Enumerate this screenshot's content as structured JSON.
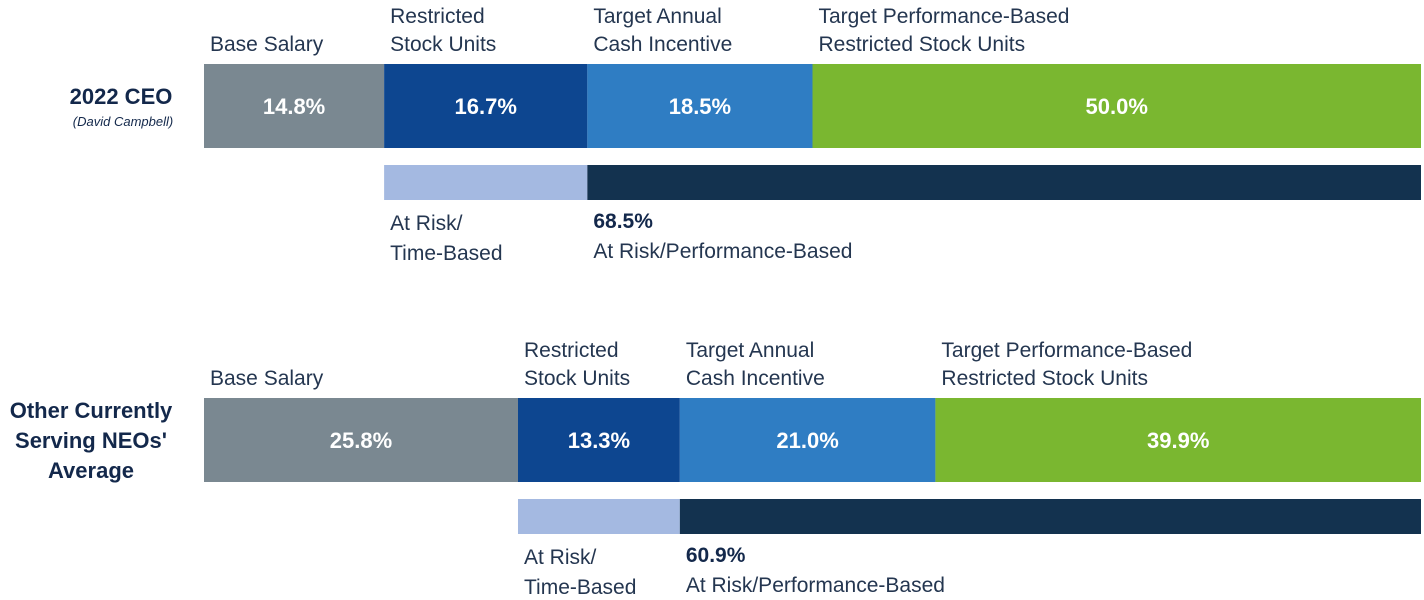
{
  "chart_data": [
    {
      "type": "bar",
      "orientation": "horizontal-stacked",
      "title": "2022 CEO",
      "subtitle": "(David Campbell)",
      "categories": [
        "Base Salary",
        "Restricted Stock Units",
        "Target Annual Cash Incentive",
        "Target Performance-Based Restricted Stock Units"
      ],
      "category_label_lines": [
        [
          "Base Salary"
        ],
        [
          "Restricted",
          "Stock Units"
        ],
        [
          "Target Annual",
          "Cash Incentive"
        ],
        [
          "Target Performance-Based",
          "Restricted Stock Units"
        ]
      ],
      "values": [
        14.8,
        16.7,
        18.5,
        50.0
      ],
      "value_labels": [
        "14.8%",
        "16.7%",
        "18.5%",
        "50.0%"
      ],
      "colors": [
        "#7a8891",
        "#0d4690",
        "#2f7dc3",
        "#7ab730"
      ],
      "risk": {
        "time_based": {
          "label_lines": [
            "At Risk/",
            "Time-Based"
          ],
          "color": "#a4b9e1",
          "segments": [
            1
          ]
        },
        "performance_based": {
          "percent": "68.5%",
          "label": "At Risk/Performance-Based",
          "color": "#13324f",
          "segments": [
            2,
            3
          ]
        }
      }
    },
    {
      "type": "bar",
      "orientation": "horizontal-stacked",
      "title_lines": [
        "Other Currently",
        "Serving NEOs'",
        "Average"
      ],
      "categories": [
        "Base Salary",
        "Restricted Stock Units",
        "Target Annual Cash Incentive",
        "Target Performance-Based Restricted Stock Units"
      ],
      "category_label_lines": [
        [
          "Base Salary"
        ],
        [
          "Restricted",
          "Stock Units"
        ],
        [
          "Target Annual",
          "Cash Incentive"
        ],
        [
          "Target Performance-Based",
          "Restricted Stock Units"
        ]
      ],
      "values": [
        25.8,
        13.3,
        21.0,
        39.9
      ],
      "value_labels": [
        "25.8%",
        "13.3%",
        "21.0%",
        "39.9%"
      ],
      "colors": [
        "#7a8891",
        "#0d4690",
        "#2f7dc3",
        "#7ab730"
      ],
      "risk": {
        "time_based": {
          "label_lines": [
            "At Risk/",
            "Time-Based"
          ],
          "color": "#a4b9e1",
          "segments": [
            1
          ]
        },
        "performance_based": {
          "percent": "60.9%",
          "label": "At Risk/Performance-Based",
          "color": "#13324f",
          "segments": [
            2,
            3
          ]
        }
      }
    }
  ]
}
